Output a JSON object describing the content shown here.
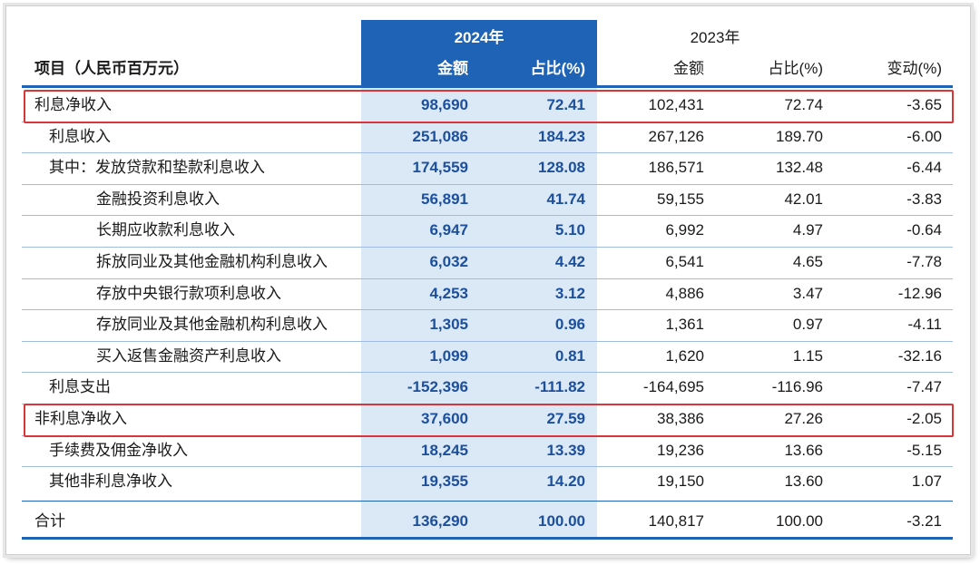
{
  "header": {
    "item_label": "项目（人民币百万元）",
    "year_2024": "2024年",
    "year_2023": "2023年",
    "amount": "金额",
    "share": "占比(%)",
    "change": "变动(%)"
  },
  "rows": [
    {
      "label": "利息净收入",
      "a24": "98,690",
      "p24": "72.41",
      "a23": "102,431",
      "p23": "72.74",
      "chg": "-3.65"
    },
    {
      "label": "利息收入",
      "a24": "251,086",
      "p24": "184.23",
      "a23": "267,126",
      "p23": "189.70",
      "chg": "-6.00"
    },
    {
      "label": "其中：发放贷款和垫款利息收入",
      "a24": "174,559",
      "p24": "128.08",
      "a23": "186,571",
      "p23": "132.48",
      "chg": "-6.44"
    },
    {
      "label": "金融投资利息收入",
      "a24": "56,891",
      "p24": "41.74",
      "a23": "59,155",
      "p23": "42.01",
      "chg": "-3.83"
    },
    {
      "label": "长期应收款利息收入",
      "a24": "6,947",
      "p24": "5.10",
      "a23": "6,992",
      "p23": "4.97",
      "chg": "-0.64"
    },
    {
      "label": "拆放同业及其他金融机构利息收入",
      "a24": "6,032",
      "p24": "4.42",
      "a23": "6,541",
      "p23": "4.65",
      "chg": "-7.78"
    },
    {
      "label": "存放中央银行款项利息收入",
      "a24": "4,253",
      "p24": "3.12",
      "a23": "4,886",
      "p23": "3.47",
      "chg": "-12.96"
    },
    {
      "label": "存放同业及其他金融机构利息收入",
      "a24": "1,305",
      "p24": "0.96",
      "a23": "1,361",
      "p23": "0.97",
      "chg": "-4.11"
    },
    {
      "label": "买入返售金融资产利息收入",
      "a24": "1,099",
      "p24": "0.81",
      "a23": "1,620",
      "p23": "1.15",
      "chg": "-32.16"
    },
    {
      "label": "利息支出",
      "a24": "-152,396",
      "p24": "-111.82",
      "a23": "-164,695",
      "p23": "-116.96",
      "chg": "-7.47"
    },
    {
      "label": "非利息净收入",
      "a24": "37,600",
      "p24": "27.59",
      "a23": "38,386",
      "p23": "27.26",
      "chg": "-2.05"
    },
    {
      "label": "手续费及佣金净收入",
      "a24": "18,245",
      "p24": "13.39",
      "a23": "19,236",
      "p23": "13.66",
      "chg": "-5.15"
    },
    {
      "label": "其他非利息净收入",
      "a24": "19,355",
      "p24": "14.20",
      "a23": "19,150",
      "p23": "13.60",
      "chg": "1.07"
    }
  ],
  "total": {
    "label": "合计",
    "a24": "136,290",
    "p24": "100.00",
    "a23": "140,817",
    "p23": "100.00",
    "chg": "-3.21"
  },
  "colors": {
    "accent": "#1e63b6",
    "highlight": "#dbe8f6",
    "box": "#d8363a"
  }
}
